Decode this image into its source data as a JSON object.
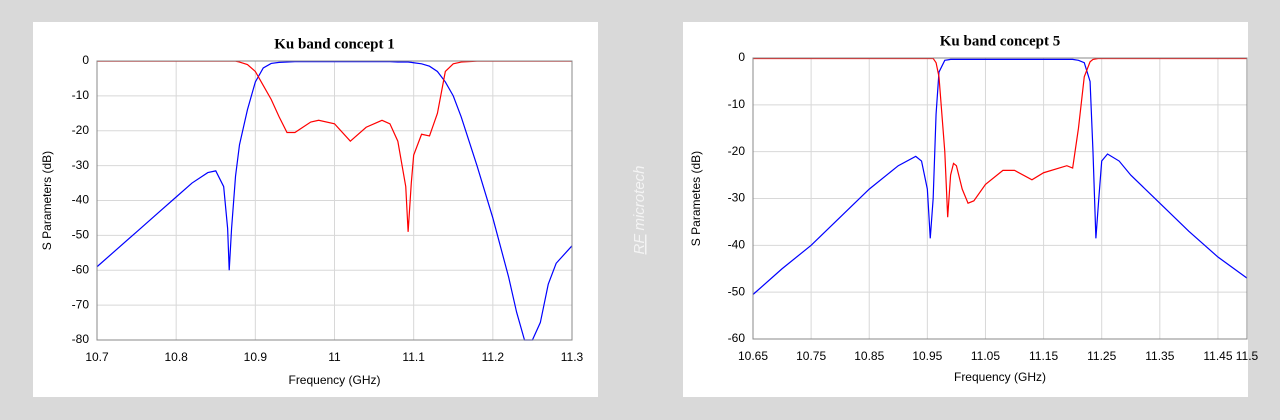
{
  "logo": {
    "brand": "RF",
    "name": "microtech"
  },
  "chart_data": [
    {
      "type": "line",
      "title": "Ku band concept 1",
      "x_label": "Frequency (GHz)",
      "y_label": "S Parameters (dB)",
      "x": [
        10.7,
        10.72,
        10.75,
        10.78,
        10.8,
        10.82,
        10.84,
        10.85,
        10.86,
        10.865,
        10.867,
        10.87,
        10.875,
        10.88,
        10.89,
        10.9,
        10.91,
        10.92,
        10.93,
        10.94,
        10.95,
        10.97,
        10.98,
        11.0,
        11.02,
        11.04,
        11.06,
        11.07,
        11.08,
        11.09,
        11.093,
        11.097,
        11.1,
        11.11,
        11.12,
        11.13,
        11.14,
        11.15,
        11.16,
        11.18,
        11.2,
        11.22,
        11.23,
        11.24,
        11.25,
        11.26,
        11.27,
        11.28,
        11.3
      ],
      "series": [
        {
          "color": "#0000ff",
          "values": [
            -59,
            -55,
            -49,
            -43,
            -39,
            -35,
            -32,
            -31.5,
            -36,
            -48,
            -60,
            -48,
            -33,
            -24,
            -14,
            -6,
            -2,
            -0.7,
            -0.4,
            -0.3,
            -0.2,
            -0.2,
            -0.2,
            -0.2,
            -0.2,
            -0.2,
            -0.2,
            -0.2,
            -0.3,
            -0.3,
            -0.3,
            -0.4,
            -0.5,
            -0.8,
            -1.5,
            -3,
            -6,
            -10,
            -16,
            -30,
            -45,
            -62,
            -72,
            -80,
            -80,
            -75,
            -64,
            -58,
            -53
          ]
        },
        {
          "color": "#ff0000",
          "values": [
            -0.05,
            -0.05,
            -0.05,
            -0.05,
            -0.05,
            -0.05,
            -0.05,
            -0.05,
            -0.05,
            -0.05,
            -0.05,
            -0.05,
            -0.05,
            -0.3,
            -1,
            -3,
            -7,
            -11,
            -16,
            -20.5,
            -20.5,
            -17.5,
            -17,
            -18,
            -23,
            -19,
            -17,
            -18,
            -23,
            -36,
            -49,
            -35,
            -27,
            -21,
            -21.5,
            -15,
            -3,
            -0.8,
            -0.3,
            -0.05,
            -0.05,
            -0.05,
            -0.05,
            -0.05,
            -0.05,
            -0.05,
            -0.05,
            -0.05,
            -0.05
          ]
        }
      ],
      "xlim": [
        10.7,
        11.3
      ],
      "xticks": [
        10.7,
        10.8,
        10.9,
        11,
        11.1,
        11.2,
        11.3
      ],
      "ylim": [
        -80,
        0
      ],
      "yticks": [
        0,
        -10,
        -20,
        -30,
        -40,
        -50,
        -60,
        -70,
        -80
      ],
      "grid": true
    },
    {
      "type": "line",
      "title": "Ku band concept 5",
      "x_label": "Frequency (GHz)",
      "y_label": "S Parametes (dB)",
      "x": [
        10.65,
        10.7,
        10.75,
        10.8,
        10.85,
        10.9,
        10.93,
        10.94,
        10.95,
        10.955,
        10.96,
        10.965,
        10.97,
        10.98,
        10.985,
        10.99,
        10.995,
        11.0,
        11.01,
        11.02,
        11.03,
        11.05,
        11.08,
        11.1,
        11.13,
        11.15,
        11.19,
        11.2,
        11.21,
        11.22,
        11.23,
        11.235,
        11.24,
        11.245,
        11.25,
        11.26,
        11.28,
        11.3,
        11.35,
        11.4,
        11.45,
        11.5
      ],
      "series": [
        {
          "color": "#0000ff",
          "values": [
            -50.5,
            -45,
            -40,
            -34,
            -28,
            -23,
            -21,
            -22,
            -28,
            -38.5,
            -30,
            -12,
            -3,
            -0.5,
            -0.4,
            -0.3,
            -0.3,
            -0.3,
            -0.3,
            -0.3,
            -0.3,
            -0.3,
            -0.3,
            -0.3,
            -0.3,
            -0.3,
            -0.3,
            -0.3,
            -0.5,
            -1,
            -5,
            -20,
            -38.5,
            -30,
            -22,
            -20.5,
            -22,
            -25,
            -31,
            -37,
            -42.5,
            -47
          ]
        },
        {
          "color": "#ff0000",
          "values": [
            -0.1,
            -0.1,
            -0.1,
            -0.1,
            -0.1,
            -0.1,
            -0.1,
            -0.1,
            -0.1,
            -0.1,
            -0.1,
            -1,
            -4,
            -20,
            -34,
            -25,
            -22.5,
            -23,
            -28,
            -31,
            -30.5,
            -27,
            -24,
            -24,
            -26,
            -24.5,
            -23,
            -23.5,
            -15,
            -4,
            -0.8,
            -0.3,
            -0.2,
            -0.1,
            -0.1,
            -0.1,
            -0.1,
            -0.1,
            -0.1,
            -0.1,
            -0.1,
            -0.1
          ]
        }
      ],
      "xlim": [
        10.65,
        11.5
      ],
      "xticks": [
        10.65,
        10.75,
        10.85,
        10.95,
        11.05,
        11.15,
        11.25,
        11.35,
        11.45,
        11.5
      ],
      "ylim": [
        -60,
        0
      ],
      "yticks": [
        0,
        -10,
        -20,
        -30,
        -40,
        -50,
        -60
      ],
      "grid": true
    }
  ]
}
